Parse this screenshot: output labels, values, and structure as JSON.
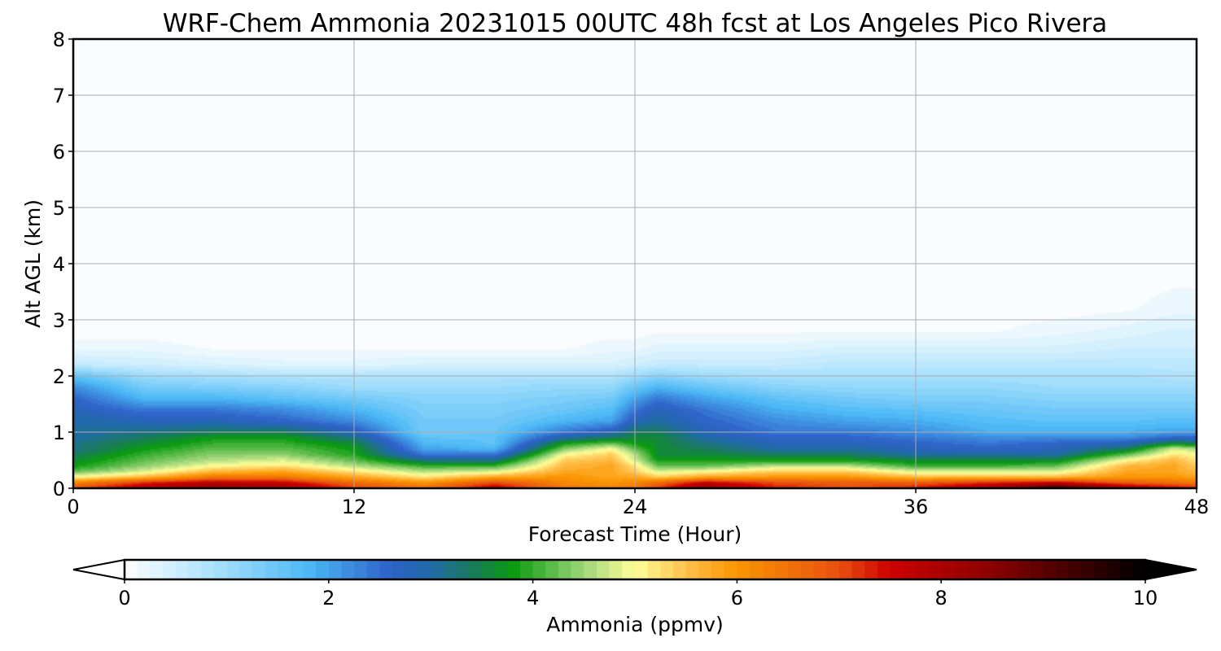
{
  "chart_data": {
    "type": "heatmap",
    "title": "WRF-Chem Ammonia  20231015 00UTC 48h fcst at Los Angeles Pico Rivera",
    "xlabel": "Forecast Time (Hour)",
    "ylabel": "Alt AGL (km)",
    "xlim": [
      0,
      48
    ],
    "ylim": [
      0,
      8
    ],
    "x_ticks": [
      0,
      12,
      24,
      36,
      48
    ],
    "y_ticks": [
      0,
      1,
      2,
      3,
      4,
      5,
      6,
      7,
      8
    ],
    "grid": true,
    "colorbar": {
      "label": "Ammonia  (ppmv)",
      "range": [
        0,
        10
      ],
      "ticks": [
        0,
        2,
        4,
        6,
        8,
        10
      ],
      "extend": "both",
      "orientation": "horizontal",
      "placement": "bottom",
      "colors": [
        {
          "value": 0,
          "color": "#ffffff"
        },
        {
          "value": 1.0,
          "color": "#9ddcfb"
        },
        {
          "value": 1.8,
          "color": "#4cb8f5"
        },
        {
          "value": 2.6,
          "color": "#2f62c9"
        },
        {
          "value": 3.0,
          "color": "#1f6aa5"
        },
        {
          "value": 3.4,
          "color": "#1a7a5e"
        },
        {
          "value": 3.8,
          "color": "#0a9a10"
        },
        {
          "value": 4.5,
          "color": "#9fd67a"
        },
        {
          "value": 5.0,
          "color": "#ffff99"
        },
        {
          "value": 5.5,
          "color": "#ffc04d"
        },
        {
          "value": 6.0,
          "color": "#fb9500"
        },
        {
          "value": 7.0,
          "color": "#e85010"
        },
        {
          "value": 7.5,
          "color": "#cc0000"
        },
        {
          "value": 8.5,
          "color": "#8a0000"
        },
        {
          "value": 10,
          "color": "#000000"
        }
      ]
    },
    "field": {
      "x": [
        0,
        3,
        6,
        9,
        12,
        15,
        18,
        21,
        23,
        24,
        25,
        27,
        30,
        33,
        36,
        39,
        42,
        45,
        47,
        48
      ],
      "y": [
        0,
        0.1,
        0.2,
        0.3,
        0.4,
        0.5,
        0.6,
        0.7,
        0.8,
        0.9,
        1.0,
        1.2,
        1.4,
        1.6,
        1.8,
        2.0,
        2.2,
        2.5,
        2.8,
        3.2,
        4.0,
        5.0,
        6.0,
        7.0,
        8.0
      ],
      "values": [
        [
          7.0,
          8.0,
          8.6,
          8.2,
          7.2,
          6.6,
          7.8,
          6.4,
          6.2,
          6.5,
          7.2,
          8.6,
          7.4,
          7.0,
          7.4,
          8.2,
          9.6,
          8.2,
          7.6,
          7.4
        ],
        [
          6.2,
          7.2,
          7.8,
          7.6,
          6.6,
          6.0,
          7.0,
          6.2,
          6.0,
          6.2,
          6.6,
          7.6,
          7.0,
          6.8,
          6.8,
          7.2,
          7.6,
          6.8,
          6.6,
          6.4
        ],
        [
          5.0,
          5.6,
          6.4,
          6.4,
          5.8,
          5.2,
          5.8,
          6.0,
          5.8,
          5.8,
          5.4,
          5.8,
          6.0,
          6.0,
          5.6,
          5.6,
          5.6,
          6.0,
          6.0,
          5.8
        ],
        [
          4.2,
          4.8,
          5.6,
          5.8,
          5.2,
          4.6,
          4.8,
          5.8,
          5.8,
          5.4,
          4.8,
          5.0,
          5.4,
          5.4,
          4.8,
          4.8,
          4.8,
          5.8,
          5.8,
          5.6
        ],
        [
          3.8,
          4.4,
          5.0,
          5.2,
          4.6,
          4.0,
          4.0,
          5.6,
          5.8,
          5.2,
          4.2,
          4.2,
          4.6,
          4.6,
          4.0,
          4.0,
          4.2,
          5.6,
          5.8,
          5.4
        ],
        [
          3.6,
          4.2,
          4.6,
          4.8,
          4.2,
          3.2,
          3.2,
          5.4,
          5.6,
          4.8,
          3.8,
          3.8,
          3.8,
          3.8,
          3.6,
          3.6,
          3.6,
          5.0,
          5.6,
          5.2
        ],
        [
          3.4,
          4.0,
          4.4,
          4.4,
          3.9,
          2.4,
          2.4,
          5.0,
          5.4,
          4.6,
          3.6,
          3.6,
          3.4,
          3.4,
          3.0,
          3.0,
          3.0,
          4.2,
          5.2,
          5.0
        ],
        [
          3.2,
          3.8,
          4.2,
          4.2,
          3.8,
          2.0,
          1.8,
          4.4,
          5.0,
          4.2,
          3.6,
          3.4,
          3.0,
          3.0,
          2.8,
          2.6,
          2.8,
          3.4,
          4.8,
          4.6
        ],
        [
          3.2,
          3.6,
          4.0,
          4.0,
          3.6,
          1.8,
          1.6,
          3.8,
          4.2,
          3.8,
          3.6,
          3.2,
          2.8,
          2.8,
          2.6,
          2.4,
          2.6,
          2.8,
          3.6,
          3.4
        ],
        [
          3.0,
          3.4,
          3.8,
          3.8,
          3.2,
          1.6,
          1.6,
          3.0,
          3.4,
          3.6,
          3.6,
          3.0,
          2.6,
          2.6,
          2.4,
          2.2,
          2.2,
          2.2,
          2.6,
          2.6
        ],
        [
          3.0,
          3.2,
          3.4,
          3.4,
          2.8,
          1.4,
          1.5,
          2.4,
          2.8,
          3.4,
          3.4,
          2.8,
          2.4,
          2.4,
          2.2,
          1.9,
          1.9,
          1.9,
          2.0,
          2.0
        ],
        [
          3.0,
          2.8,
          2.8,
          2.6,
          2.2,
          1.4,
          1.4,
          1.8,
          2.0,
          2.8,
          3.0,
          2.6,
          2.2,
          2.0,
          1.9,
          1.7,
          1.6,
          1.6,
          1.7,
          1.7
        ],
        [
          2.8,
          2.4,
          2.4,
          2.2,
          1.8,
          1.3,
          1.3,
          1.5,
          1.7,
          2.4,
          2.8,
          2.4,
          1.9,
          1.7,
          1.6,
          1.5,
          1.4,
          1.4,
          1.4,
          1.4
        ],
        [
          2.6,
          1.8,
          1.8,
          1.6,
          1.4,
          1.2,
          1.2,
          1.3,
          1.4,
          2.0,
          2.4,
          2.0,
          1.6,
          1.4,
          1.3,
          1.3,
          1.2,
          1.2,
          1.2,
          1.2
        ],
        [
          2.2,
          1.4,
          1.3,
          1.2,
          1.0,
          1.0,
          1.0,
          1.1,
          1.1,
          1.5,
          1.8,
          1.5,
          1.2,
          1.1,
          1.1,
          1.1,
          1.0,
          1.0,
          1.0,
          1.0
        ],
        [
          1.6,
          1.0,
          0.9,
          0.8,
          0.8,
          0.8,
          0.8,
          0.8,
          0.8,
          1.0,
          1.2,
          1.0,
          0.9,
          0.9,
          0.9,
          0.9,
          0.9,
          0.9,
          0.8,
          0.8
        ],
        [
          0.6,
          0.5,
          0.4,
          0.3,
          0.3,
          0.4,
          0.4,
          0.4,
          0.4,
          0.5,
          0.6,
          0.6,
          0.6,
          0.7,
          0.7,
          0.7,
          0.7,
          0.7,
          0.7,
          0.7
        ],
        [
          0.2,
          0.2,
          0.1,
          0.1,
          0.1,
          0.1,
          0.1,
          0.1,
          0.2,
          0.2,
          0.3,
          0.3,
          0.3,
          0.4,
          0.4,
          0.4,
          0.4,
          0.5,
          0.5,
          0.5
        ],
        [
          0.05,
          0.05,
          0.05,
          0.05,
          0.05,
          0.05,
          0.05,
          0.05,
          0.05,
          0.05,
          0.1,
          0.1,
          0.1,
          0.1,
          0.1,
          0.1,
          0.2,
          0.3,
          0.4,
          0.4
        ],
        [
          0.02,
          0.02,
          0.02,
          0.02,
          0.02,
          0.02,
          0.02,
          0.02,
          0.02,
          0.02,
          0.03,
          0.03,
          0.05,
          0.05,
          0.05,
          0.05,
          0.05,
          0.1,
          0.2,
          0.2
        ],
        [
          0.01,
          0.01,
          0.01,
          0.01,
          0.01,
          0.01,
          0.01,
          0.01,
          0.01,
          0.01,
          0.01,
          0.01,
          0.01,
          0.01,
          0.01,
          0.01,
          0.01,
          0.02,
          0.03,
          0.03
        ],
        [
          0,
          0,
          0,
          0,
          0,
          0,
          0,
          0,
          0,
          0,
          0,
          0,
          0,
          0,
          0,
          0,
          0,
          0,
          0,
          0
        ],
        [
          0,
          0,
          0,
          0,
          0,
          0,
          0,
          0,
          0,
          0,
          0,
          0,
          0,
          0,
          0,
          0,
          0,
          0,
          0,
          0
        ],
        [
          0,
          0,
          0,
          0,
          0,
          0,
          0,
          0,
          0,
          0,
          0,
          0,
          0,
          0,
          0,
          0,
          0,
          0,
          0,
          0
        ],
        [
          0,
          0,
          0,
          0,
          0,
          0,
          0,
          0,
          0,
          0,
          0,
          0,
          0,
          0,
          0,
          0,
          0,
          0,
          0,
          0
        ]
      ]
    }
  }
}
